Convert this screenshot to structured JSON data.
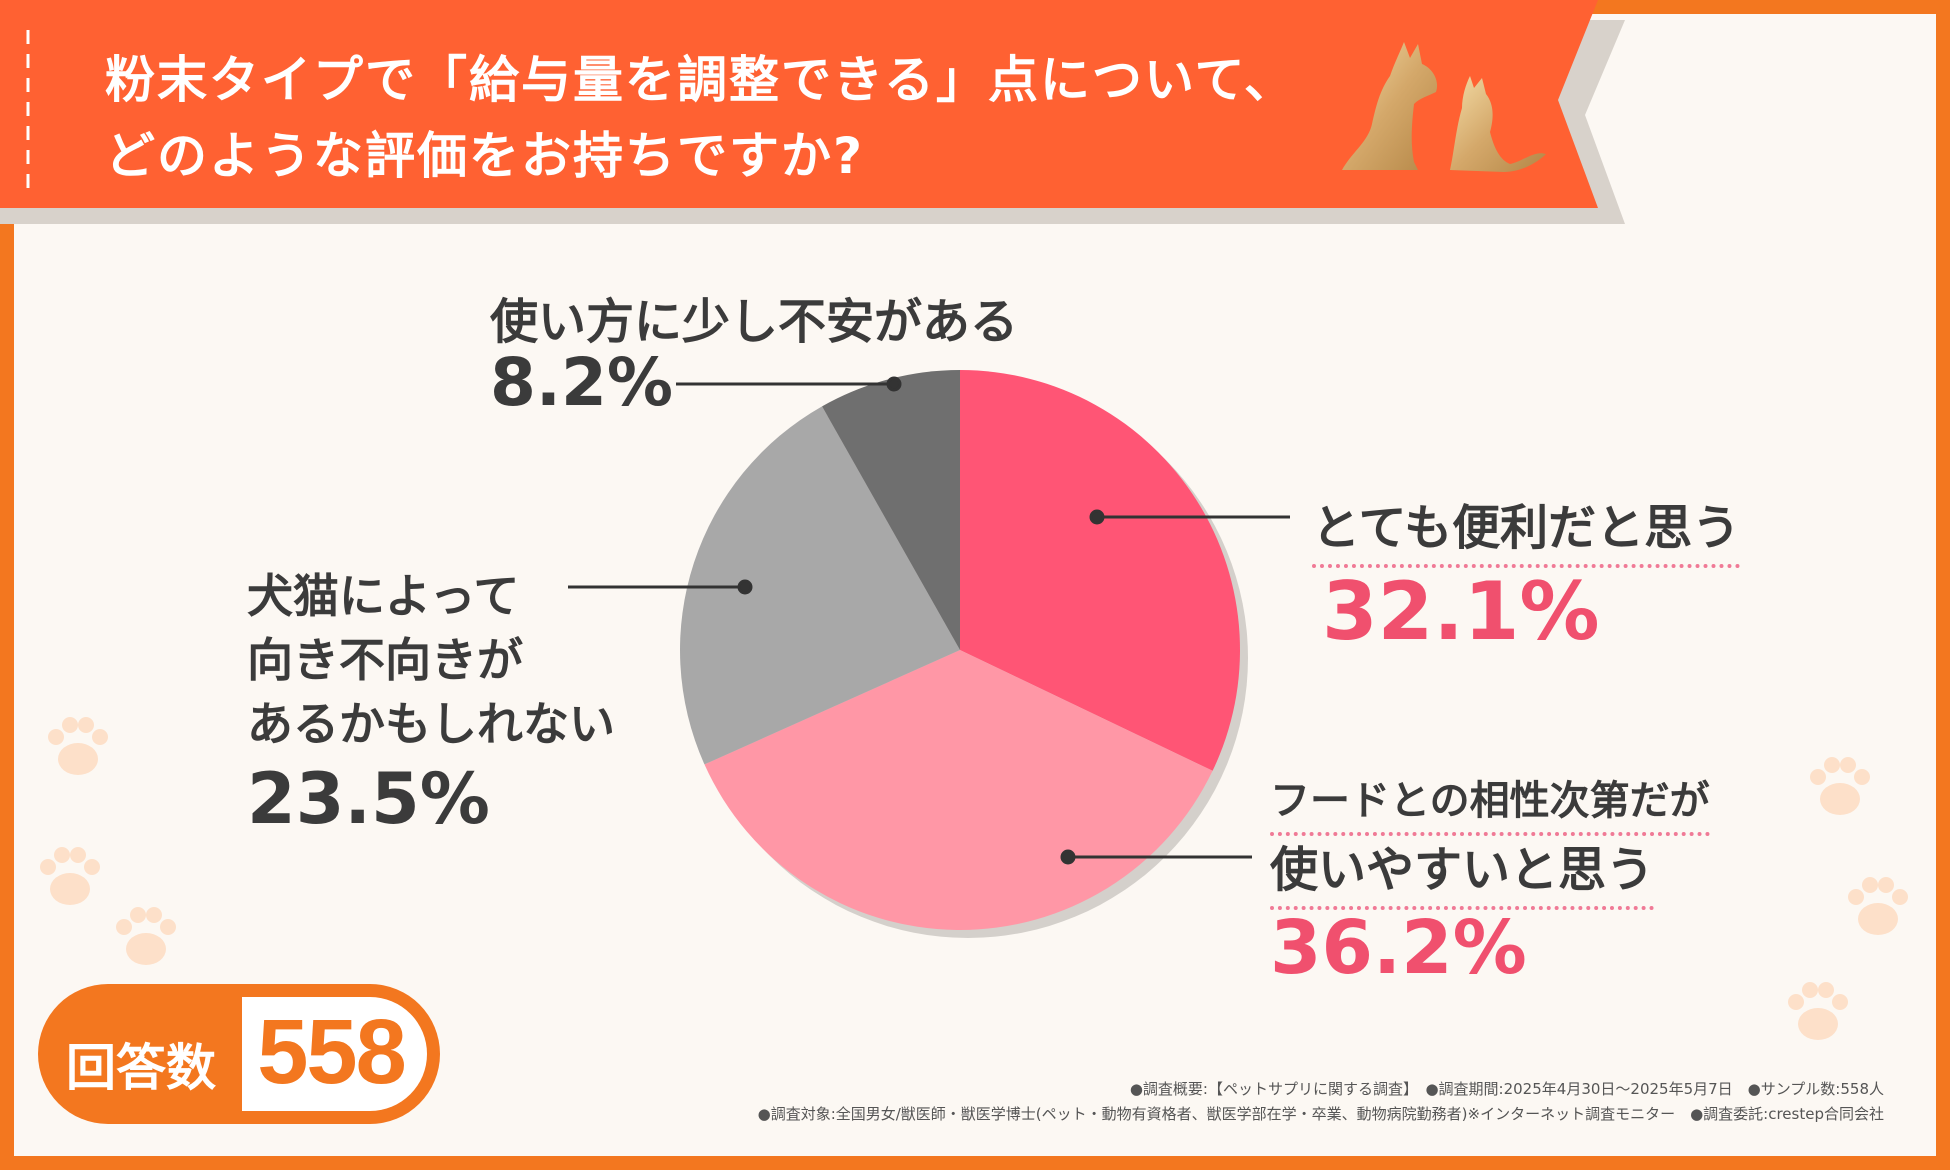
{
  "question": {
    "line1": "粉末タイプで「給与量を調整できる」点について、",
    "line2": "どのような評価をお持ちですか?"
  },
  "colors": {
    "frame": "#f3771f",
    "banner": "#ff6132",
    "background": "#fcf8f3",
    "pink_dark": "#ff5575",
    "pink_light": "#ff97a6",
    "gray_light": "#a8a8a8",
    "gray_dark": "#6f6f6f",
    "accent_text": "#f0506e"
  },
  "chart_data": {
    "type": "pie",
    "slices": [
      {
        "label": "とても便利だと思う",
        "value": 32.1,
        "display": "32.1%",
        "color": "#ff5575"
      },
      {
        "label": "フードとの相性次第だが使いやすいと思う",
        "label_lines": [
          "フードとの相性次第だが",
          "使いやすいと思う"
        ],
        "value": 36.2,
        "display": "36.2%",
        "color": "#ff97a6"
      },
      {
        "label": "犬猫によって向き不向きがあるかもしれない",
        "label_lines": [
          "犬猫によって",
          "向き不向きが",
          "あるかもしれない"
        ],
        "value": 23.5,
        "display": "23.5%",
        "color": "#a8a8a8"
      },
      {
        "label": "使い方に少し不安がある",
        "value": 8.2,
        "display": "8.2%",
        "color": "#6f6f6f"
      }
    ]
  },
  "respondents": {
    "label": "回答数",
    "value": "558"
  },
  "footnote": {
    "line1": "●調査概要:【ペットサプリに関する調査】　●調査期間:2025年4月30日～2025年5月7日　●サンプル数:558人",
    "line2": "●調査対象:全国男女/獣医師・獣医学博士(ペット・動物有資格者、獣医学部在学・卒業、動物病院勤務者)※インターネット調査モニター　●調査委託:crestep合同会社"
  }
}
